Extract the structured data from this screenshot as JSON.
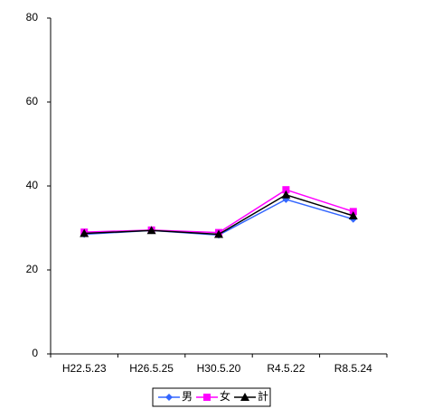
{
  "chart_data": {
    "type": "line",
    "categories": [
      "H22.5.23",
      "H26.5.25",
      "H30.5.20",
      "R4.5.22",
      "R8.5.24"
    ],
    "series": [
      {
        "name": "男",
        "color": "#3366ff",
        "marker": "diamond",
        "values": [
          28.5,
          29.4,
          28.3,
          36.8,
          32.1
        ]
      },
      {
        "name": "女",
        "color": "#ff00ff",
        "marker": "square",
        "values": [
          29.0,
          29.5,
          28.9,
          39.1,
          33.9
        ]
      },
      {
        "name": "計",
        "color": "#000000",
        "marker": "triangle",
        "values": [
          28.7,
          29.4,
          28.5,
          37.9,
          32.9
        ]
      }
    ],
    "ylim": [
      0,
      80
    ],
    "yticks": [
      0,
      20,
      40,
      60,
      80
    ],
    "grid": false,
    "legend": "bottom"
  }
}
